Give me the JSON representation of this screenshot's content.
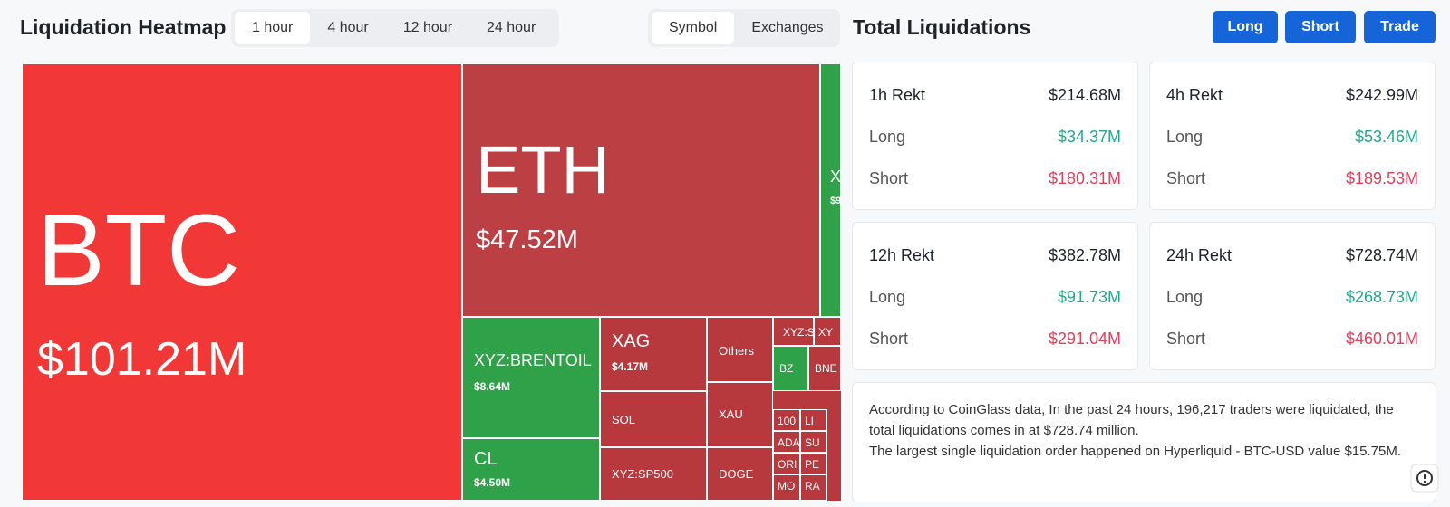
{
  "header": {
    "title": "Liquidation Heatmap",
    "timeframes": [
      "1 hour",
      "4 hour",
      "12 hour",
      "24 hour"
    ],
    "views": [
      "Symbol",
      "Exchanges"
    ]
  },
  "heatmap": {
    "tiles": [
      {
        "label": "BTC",
        "value": "$101.21M"
      },
      {
        "label": "ETH",
        "value": "$47.52M"
      },
      {
        "label": "X",
        "value": "$9"
      },
      {
        "label": "XYZ:BRENTOIL",
        "value": "$8.64M"
      },
      {
        "label": "CL",
        "value": "$4.50M"
      },
      {
        "label": "XAG",
        "value": "$4.17M"
      },
      {
        "label": "SOL"
      },
      {
        "label": "XYZ:SP500"
      },
      {
        "label": "Others"
      },
      {
        "label": "XAU"
      },
      {
        "label": "DOGE"
      },
      {
        "label": "XYZ:S"
      },
      {
        "label": "XY"
      },
      {
        "label": "BZ"
      },
      {
        "label": "BNE"
      },
      {
        "label": "100"
      },
      {
        "label": "LI"
      },
      {
        "label": "ADA"
      },
      {
        "label": "SU"
      },
      {
        "label": "ORI"
      },
      {
        "label": "PE"
      },
      {
        "label": "MO"
      },
      {
        "label": "RA"
      }
    ]
  },
  "liquidations": {
    "title": "Total Liquidations",
    "buttons": [
      "Long",
      "Short",
      "Trade"
    ],
    "cards": [
      {
        "period": "1h Rekt",
        "total": "$214.68M",
        "long_label": "Long",
        "long": "$34.37M",
        "short_label": "Short",
        "short": "$180.31M"
      },
      {
        "period": "4h Rekt",
        "total": "$242.99M",
        "long_label": "Long",
        "long": "$53.46M",
        "short_label": "Short",
        "short": "$189.53M"
      },
      {
        "period": "12h Rekt",
        "total": "$382.78M",
        "long_label": "Long",
        "long": "$91.73M",
        "short_label": "Short",
        "short": "$291.04M"
      },
      {
        "period": "24h Rekt",
        "total": "$728.74M",
        "long_label": "Long",
        "long": "$268.73M",
        "short_label": "Short",
        "short": "$460.01M"
      }
    ],
    "note": [
      "According to CoinGlass data, In the past 24 hours, 196,217 traders were liquidated, the total liquidations comes in at $728.74 million.",
      "The largest single liquidation order happened on Hyperliquid - BTC-USD value $15.75M."
    ]
  }
}
